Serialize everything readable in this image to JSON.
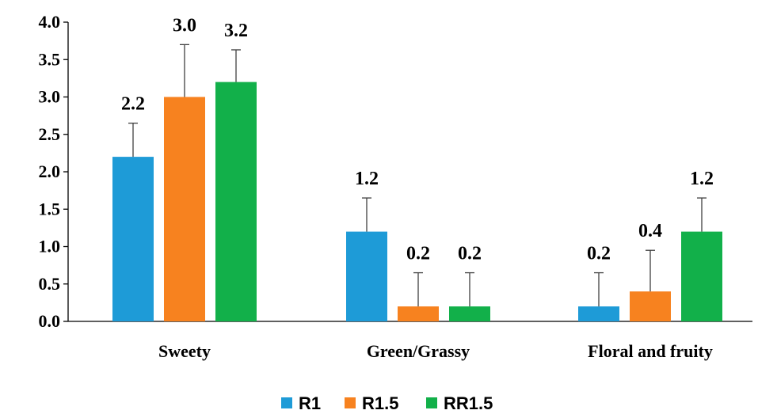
{
  "chart_data": {
    "type": "bar",
    "categories": [
      "Sweety",
      "Green/Grassy",
      "Floral and fruity"
    ],
    "series": [
      {
        "name": "R1",
        "color": "#1e9bd7",
        "values": [
          2.2,
          1.2,
          0.2
        ],
        "errors": [
          0.45,
          0.45,
          0.45
        ],
        "labels": [
          "2.2",
          "1.2",
          "0.2"
        ]
      },
      {
        "name": "R1.5",
        "color": "#f7821f",
        "values": [
          3.0,
          0.2,
          0.4
        ],
        "errors": [
          0.7,
          0.45,
          0.55
        ],
        "labels": [
          "3.0",
          "0.2",
          "0.4"
        ]
      },
      {
        "name": "RR1.5",
        "color": "#12b04a",
        "values": [
          3.2,
          0.2,
          1.2
        ],
        "errors": [
          0.43,
          0.45,
          0.45
        ],
        "labels": [
          "3.2",
          "0.2",
          "1.2"
        ]
      }
    ],
    "yticks": [
      "0.0",
      "0.5",
      "1.0",
      "1.5",
      "2.0",
      "2.5",
      "3.0",
      "3.5",
      "4.0"
    ],
    "ylim": [
      0,
      4
    ],
    "grid": false,
    "legend_position": "bottom"
  }
}
